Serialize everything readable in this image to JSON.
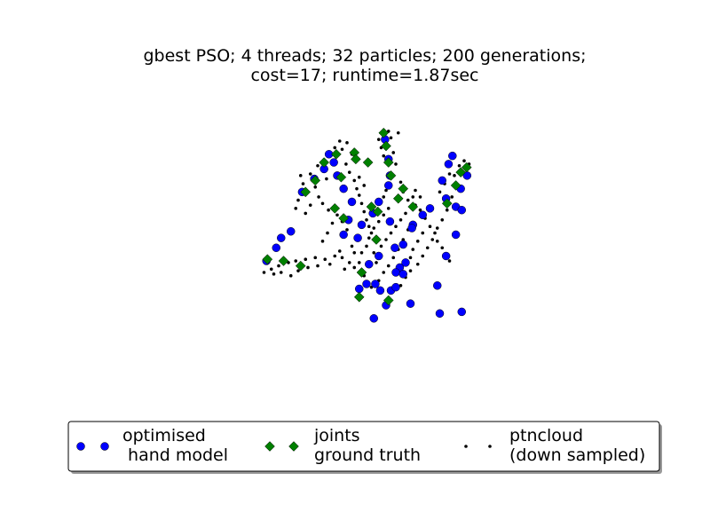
{
  "chart_data": {
    "type": "scatter",
    "title_line1": "gbest PSO; 4 threads; 32 particles; 200 generations;",
    "title_line2": "cost=17; runtime=1.87sec",
    "axes_visible": false,
    "grid": false,
    "legend_placement": "bottom-center",
    "series": [
      {
        "name_line1": "optimised",
        "name_line2": " hand model",
        "marker": "circle",
        "color": "#0000ff",
        "points": [
          [
            -0.45,
            4.35
          ],
          [
            -0.25,
            4.75
          ],
          [
            -0.15,
            5.05
          ],
          [
            0.05,
            5.25
          ],
          [
            0.28,
            6.45
          ],
          [
            0.53,
            6.85
          ],
          [
            0.73,
            7.15
          ],
          [
            0.83,
            7.6
          ],
          [
            1.98,
            8.05
          ],
          [
            2.05,
            7.45
          ],
          [
            2.08,
            6.95
          ],
          [
            2.05,
            6.65
          ],
          [
            1.85,
            6.15
          ],
          [
            1.73,
            5.8
          ],
          [
            1.5,
            5.45
          ],
          [
            1.42,
            5.05
          ],
          [
            2.08,
            5.55
          ],
          [
            2.18,
            4.75
          ],
          [
            2.28,
            4.15
          ],
          [
            2.1,
            3.45
          ],
          [
            3.23,
            6.25
          ],
          [
            3.15,
            6.8
          ],
          [
            3.28,
            7.3
          ],
          [
            3.36,
            7.55
          ],
          [
            2.9,
            5.95
          ],
          [
            2.55,
            5.45
          ],
          [
            2.35,
            4.85
          ],
          [
            2.2,
            4.0
          ],
          [
            3.43,
            6.0
          ],
          [
            3.53,
            6.55
          ],
          [
            3.66,
            6.95
          ],
          [
            3.55,
            5.9
          ],
          [
            3.43,
            5.15
          ],
          [
            3.23,
            4.5
          ],
          [
            3.05,
            3.6
          ],
          [
            1.13,
            5.15
          ],
          [
            1.23,
            5.6
          ],
          [
            1.3,
            6.15
          ],
          [
            1.13,
            6.55
          ],
          [
            1.0,
            6.95
          ],
          [
            0.93,
            7.35
          ],
          [
            2.53,
            5.35
          ],
          [
            2.75,
            5.75
          ],
          [
            1.78,
            3.65
          ],
          [
            2.5,
            3.05
          ],
          [
            3.1,
            2.75
          ],
          [
            3.55,
            2.8
          ],
          [
            2.2,
            3.55
          ],
          [
            2.0,
            3.0
          ],
          [
            1.75,
            2.6
          ],
          [
            1.6,
            3.65
          ],
          [
            1.45,
            3.5
          ],
          [
            1.65,
            4.25
          ],
          [
            2.35,
            3.95
          ],
          [
            2.4,
            4.3
          ],
          [
            1.85,
            4.5
          ],
          [
            1.88,
            3.45
          ]
        ]
      },
      {
        "name_line1": "joints",
        "name_line2": "ground truth",
        "marker": "diamond",
        "color": "#008000",
        "points": [
          [
            -0.43,
            4.4
          ],
          [
            -0.1,
            4.35
          ],
          [
            0.25,
            4.2
          ],
          [
            1.5,
            4.0
          ],
          [
            0.35,
            6.45
          ],
          [
            0.55,
            6.8
          ],
          [
            0.73,
            7.35
          ],
          [
            0.98,
            7.6
          ],
          [
            1.95,
            8.25
          ],
          [
            2.0,
            7.85
          ],
          [
            2.05,
            7.35
          ],
          [
            2.1,
            6.95
          ],
          [
            1.83,
            5.85
          ],
          [
            1.13,
            5.65
          ],
          [
            1.08,
            6.9
          ],
          [
            1.63,
            7.35
          ],
          [
            2.55,
            6.0
          ],
          [
            3.43,
            6.65
          ],
          [
            3.53,
            7.05
          ],
          [
            3.65,
            7.2
          ],
          [
            1.35,
            7.65
          ],
          [
            1.38,
            7.45
          ],
          [
            1.45,
            3.25
          ],
          [
            2.05,
            3.15
          ],
          [
            2.35,
            6.55
          ],
          [
            3.25,
            6.1
          ],
          [
            0.95,
            5.95
          ],
          [
            2.25,
            6.25
          ],
          [
            1.7,
            6.0
          ],
          [
            1.8,
            5.0
          ]
        ]
      },
      {
        "name_line1": "ptncloud",
        "name_line2": "(down sampled)",
        "marker": "point",
        "color": "#000000",
        "points": [
          [
            -0.5,
            4.0
          ],
          [
            -0.35,
            4.1
          ],
          [
            -0.2,
            4.2
          ],
          [
            0.0,
            4.3
          ],
          [
            0.15,
            4.35
          ],
          [
            0.35,
            4.4
          ],
          [
            0.55,
            4.45
          ],
          [
            0.75,
            4.4
          ],
          [
            0.95,
            4.5
          ],
          [
            1.1,
            4.45
          ],
          [
            1.25,
            4.3
          ],
          [
            1.35,
            4.6
          ],
          [
            1.05,
            4.65
          ],
          [
            0.85,
            4.25
          ],
          [
            0.6,
            4.2
          ],
          [
            0.4,
            4.15
          ],
          [
            0.2,
            4.05
          ],
          [
            -0.15,
            4.0
          ],
          [
            -0.3,
            3.95
          ],
          [
            0.05,
            3.9
          ],
          [
            0.3,
            6.7
          ],
          [
            0.25,
            6.95
          ],
          [
            0.45,
            7.0
          ],
          [
            0.55,
            6.6
          ],
          [
            0.62,
            6.3
          ],
          [
            0.7,
            6.1
          ],
          [
            0.82,
            5.9
          ],
          [
            0.78,
            6.85
          ],
          [
            0.6,
            7.25
          ],
          [
            0.9,
            7.4
          ],
          [
            0.95,
            7.8
          ],
          [
            1.05,
            8.0
          ],
          [
            1.1,
            7.75
          ],
          [
            1.2,
            7.95
          ],
          [
            1.3,
            7.6
          ],
          [
            1.18,
            7.3
          ],
          [
            1.25,
            7.05
          ],
          [
            1.35,
            6.8
          ],
          [
            1.4,
            6.55
          ],
          [
            1.45,
            6.35
          ],
          [
            1.5,
            6.1
          ],
          [
            1.55,
            5.85
          ],
          [
            1.6,
            5.6
          ],
          [
            1.65,
            5.4
          ],
          [
            1.7,
            5.2
          ],
          [
            1.85,
            8.05
          ],
          [
            1.9,
            7.8
          ],
          [
            1.95,
            7.55
          ],
          [
            2.05,
            8.3
          ],
          [
            2.1,
            8.1
          ],
          [
            2.25,
            8.25
          ],
          [
            2.15,
            7.65
          ],
          [
            2.2,
            7.3
          ],
          [
            2.15,
            6.95
          ],
          [
            2.3,
            6.75
          ],
          [
            2.35,
            6.45
          ],
          [
            2.45,
            6.2
          ],
          [
            2.55,
            6.3
          ],
          [
            2.6,
            6.05
          ],
          [
            2.7,
            5.9
          ],
          [
            2.8,
            5.65
          ],
          [
            2.9,
            5.4
          ],
          [
            3.0,
            5.2
          ],
          [
            3.05,
            4.95
          ],
          [
            3.15,
            4.75
          ],
          [
            3.2,
            4.55
          ],
          [
            3.3,
            4.35
          ],
          [
            3.4,
            6.95
          ],
          [
            3.5,
            7.25
          ],
          [
            3.6,
            7.4
          ],
          [
            3.7,
            7.3
          ],
          [
            3.45,
            6.6
          ],
          [
            3.35,
            6.3
          ],
          [
            3.25,
            5.9
          ],
          [
            3.15,
            5.6
          ],
          [
            3.05,
            5.35
          ],
          [
            2.95,
            5.0
          ],
          [
            2.85,
            4.75
          ],
          [
            2.75,
            4.5
          ],
          [
            2.65,
            4.25
          ],
          [
            2.5,
            4.05
          ],
          [
            2.4,
            3.85
          ],
          [
            2.3,
            3.6
          ],
          [
            1.4,
            5.0
          ],
          [
            1.3,
            4.8
          ],
          [
            1.2,
            5.3
          ],
          [
            1.1,
            5.55
          ],
          [
            1.0,
            5.75
          ],
          [
            0.9,
            5.5
          ],
          [
            0.8,
            5.2
          ],
          [
            0.7,
            4.95
          ],
          [
            1.5,
            4.6
          ],
          [
            1.6,
            4.8
          ],
          [
            1.75,
            4.6
          ],
          [
            1.9,
            4.8
          ],
          [
            2.0,
            5.0
          ],
          [
            2.1,
            5.2
          ],
          [
            2.2,
            5.4
          ],
          [
            2.3,
            5.6
          ],
          [
            2.4,
            5.8
          ],
          [
            2.45,
            5.3
          ],
          [
            2.35,
            5.0
          ],
          [
            2.25,
            4.7
          ],
          [
            2.15,
            4.45
          ],
          [
            2.05,
            4.2
          ],
          [
            1.95,
            4.0
          ],
          [
            1.85,
            3.75
          ],
          [
            1.7,
            3.55
          ],
          [
            1.55,
            3.9
          ],
          [
            1.8,
            4.3
          ],
          [
            2.55,
            4.7
          ],
          [
            2.65,
            4.95
          ],
          [
            2.75,
            5.2
          ],
          [
            2.5,
            4.45
          ],
          [
            1.65,
            5.05
          ],
          [
            1.75,
            5.35
          ],
          [
            1.85,
            5.55
          ],
          [
            1.95,
            5.75
          ],
          [
            2.05,
            5.95
          ],
          [
            1.95,
            6.3
          ],
          [
            1.55,
            6.65
          ],
          [
            1.45,
            6.9
          ],
          [
            2.0,
            6.5
          ],
          [
            2.6,
            6.5
          ],
          [
            2.7,
            6.3
          ],
          [
            3.1,
            6.45
          ],
          [
            3.2,
            6.7
          ],
          [
            3.3,
            7.0
          ],
          [
            0.15,
            5.95
          ],
          [
            0.2,
            6.2
          ],
          [
            0.45,
            6.05
          ],
          [
            0.35,
            5.8
          ],
          [
            1.15,
            4.1
          ],
          [
            1.35,
            4.15
          ],
          [
            1.45,
            4.3
          ]
        ]
      }
    ]
  }
}
